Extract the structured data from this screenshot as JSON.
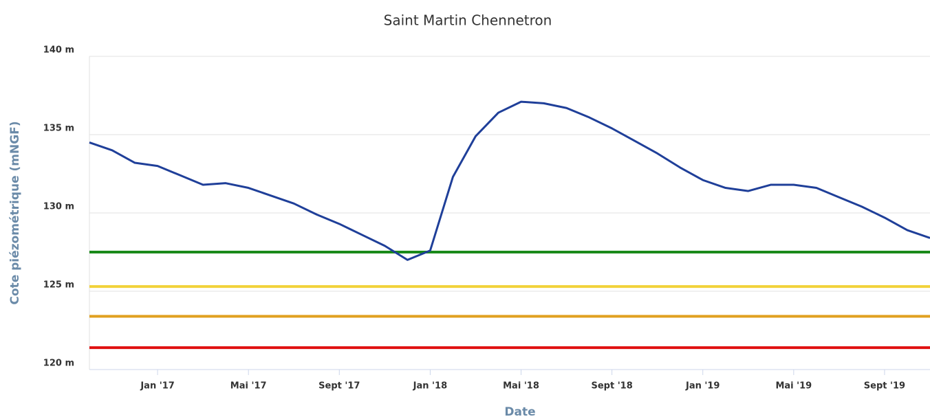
{
  "chart_data": {
    "type": "line",
    "title": "Saint Martin Chennetron",
    "xlabel": "Date",
    "ylabel": "Cote piézométrique (mNGF)",
    "x": [
      "2016-10",
      "2016-11",
      "2016-12",
      "2017-01",
      "2017-02",
      "2017-03",
      "2017-04",
      "2017-05",
      "2017-06",
      "2017-07",
      "2017-08",
      "2017-09",
      "2017-10",
      "2017-11",
      "2017-12",
      "2018-01",
      "2018-02",
      "2018-03",
      "2018-04",
      "2018-05",
      "2018-06",
      "2018-07",
      "2018-08",
      "2018-09",
      "2018-10",
      "2018-11",
      "2018-12",
      "2019-01",
      "2019-02",
      "2019-03",
      "2019-04",
      "2019-05",
      "2019-06",
      "2019-07",
      "2019-08",
      "2019-09",
      "2019-10",
      "2019-11"
    ],
    "series": [
      {
        "color": "#1f3f99",
        "values": [
          134.5,
          134.0,
          133.2,
          133.0,
          132.4,
          131.8,
          131.9,
          131.6,
          131.1,
          130.6,
          129.9,
          129.3,
          128.6,
          127.9,
          127.0,
          127.6,
          132.3,
          134.9,
          136.4,
          137.1,
          137.0,
          136.7,
          136.1,
          135.4,
          134.6,
          133.8,
          132.9,
          132.1,
          131.6,
          131.4,
          131.8,
          131.8,
          131.6,
          131.0,
          130.4,
          129.7,
          128.9,
          128.4
        ]
      }
    ],
    "thresholds": [
      {
        "value": 127.5,
        "color": "#1a8a1a"
      },
      {
        "value": 125.3,
        "color": "#f2d23a"
      },
      {
        "value": 123.4,
        "color": "#e0a020"
      },
      {
        "value": 121.4,
        "color": "#e01010"
      }
    ],
    "xlim": [
      "2016-10",
      "2019-11"
    ],
    "xticks": [
      {
        "value": "2017-01",
        "label": "Jan '17"
      },
      {
        "value": "2017-05",
        "label": "Mai '17"
      },
      {
        "value": "2017-09",
        "label": "Sept '17"
      },
      {
        "value": "2018-01",
        "label": "Jan '18"
      },
      {
        "value": "2018-05",
        "label": "Mai '18"
      },
      {
        "value": "2018-09",
        "label": "Sept '18"
      },
      {
        "value": "2019-01",
        "label": "Jan '19"
      },
      {
        "value": "2019-05",
        "label": "Mai '19"
      },
      {
        "value": "2019-09",
        "label": "Sept '19"
      }
    ],
    "ylim": [
      120,
      140
    ],
    "yticks": [
      {
        "value": 120,
        "label": "120 m"
      },
      {
        "value": 125,
        "label": "125 m"
      },
      {
        "value": 130,
        "label": "130 m"
      },
      {
        "value": 135,
        "label": "135 m"
      },
      {
        "value": 140,
        "label": "140 m"
      }
    ],
    "grid": true
  }
}
